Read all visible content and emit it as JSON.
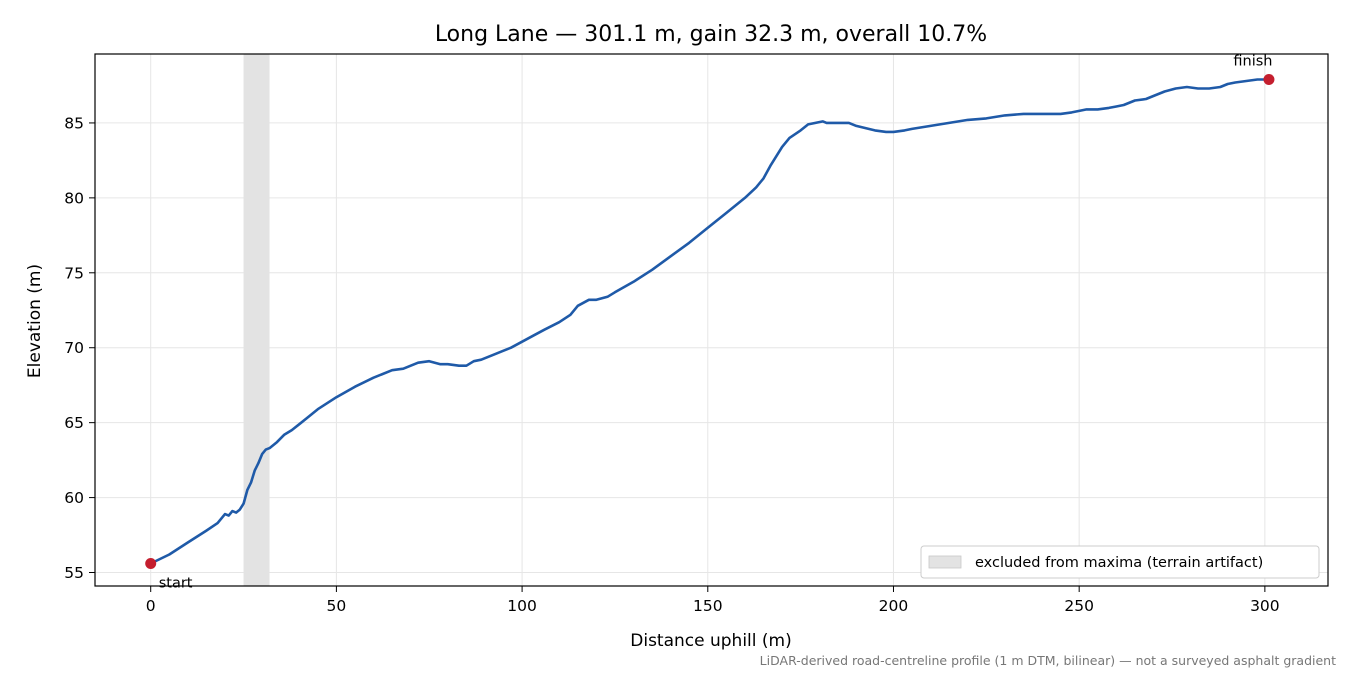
{
  "chart_data": {
    "type": "line",
    "title": "Long Lane — 301.1 m, gain 32.3 m, overall 10.7%",
    "xlabel": "Distance uphill (m)",
    "ylabel": "Elevation (m)",
    "xlim": [
      -15,
      317
    ],
    "ylim": [
      54.1,
      89.6
    ],
    "xticks": [
      0,
      50,
      100,
      150,
      200,
      250,
      300
    ],
    "yticks": [
      55,
      60,
      65,
      70,
      75,
      80,
      85
    ],
    "grid": true,
    "legend_position": "lower-right",
    "colors": {
      "line": "#1f5aa8",
      "marker": "#c41e2e",
      "band": "#e3e3e3"
    },
    "series": [
      {
        "x": [
          0,
          5,
          10,
          15,
          18,
          20,
          21,
          22,
          23,
          24,
          25,
          26,
          27,
          28,
          29,
          30,
          31,
          32,
          34,
          36,
          38,
          40,
          42,
          45,
          50,
          55,
          60,
          65,
          68,
          70,
          72,
          75,
          78,
          80,
          83,
          85,
          87,
          89,
          92,
          95,
          97,
          100,
          103,
          106,
          110,
          113,
          115,
          118,
          120,
          123,
          125,
          130,
          135,
          140,
          145,
          150,
          155,
          160,
          163,
          165,
          167,
          170,
          172,
          175,
          177,
          179,
          181,
          182,
          184,
          186,
          188,
          190,
          195,
          198,
          200,
          203,
          205,
          210,
          215,
          220,
          225,
          230,
          235,
          240,
          245,
          248,
          250,
          252,
          255,
          258,
          260,
          262,
          265,
          268,
          270,
          273,
          276,
          279,
          282,
          285,
          288,
          290,
          292,
          295,
          298,
          301.1
        ],
        "y": [
          55.6,
          56.2,
          57.0,
          57.8,
          58.3,
          58.9,
          58.8,
          59.1,
          59.0,
          59.2,
          59.6,
          60.5,
          61.0,
          61.8,
          62.3,
          62.9,
          63.2,
          63.3,
          63.7,
          64.2,
          64.5,
          64.9,
          65.3,
          65.9,
          66.7,
          67.4,
          68.0,
          68.5,
          68.6,
          68.8,
          69.0,
          69.1,
          68.9,
          68.9,
          68.8,
          68.8,
          69.1,
          69.2,
          69.5,
          69.8,
          70.0,
          70.4,
          70.8,
          71.2,
          71.7,
          72.2,
          72.8,
          73.2,
          73.2,
          73.4,
          73.7,
          74.4,
          75.2,
          76.1,
          77.0,
          78.0,
          79.0,
          80.0,
          80.7,
          81.3,
          82.2,
          83.4,
          84.0,
          84.5,
          84.9,
          85.0,
          85.1,
          85.0,
          85.0,
          85.0,
          85.0,
          84.8,
          84.5,
          84.4,
          84.4,
          84.5,
          84.6,
          84.8,
          85.0,
          85.2,
          85.3,
          85.5,
          85.6,
          85.6,
          85.6,
          85.7,
          85.8,
          85.9,
          85.9,
          86.0,
          86.1,
          86.2,
          86.5,
          86.6,
          86.8,
          87.1,
          87.3,
          87.4,
          87.3,
          87.3,
          87.4,
          87.6,
          87.7,
          87.8,
          87.9,
          87.9
        ]
      }
    ],
    "excluded_band": {
      "x0": 25,
      "x1": 32,
      "label": "excluded from maxima (terrain artifact)"
    },
    "annotations": [
      {
        "text": "start",
        "x": 0,
        "y": 55.6
      },
      {
        "text": "finish",
        "x": 301.1,
        "y": 87.9
      }
    ],
    "footnote": "LiDAR-derived road-centreline profile (1 m DTM, bilinear) — not a surveyed asphalt gradient"
  }
}
